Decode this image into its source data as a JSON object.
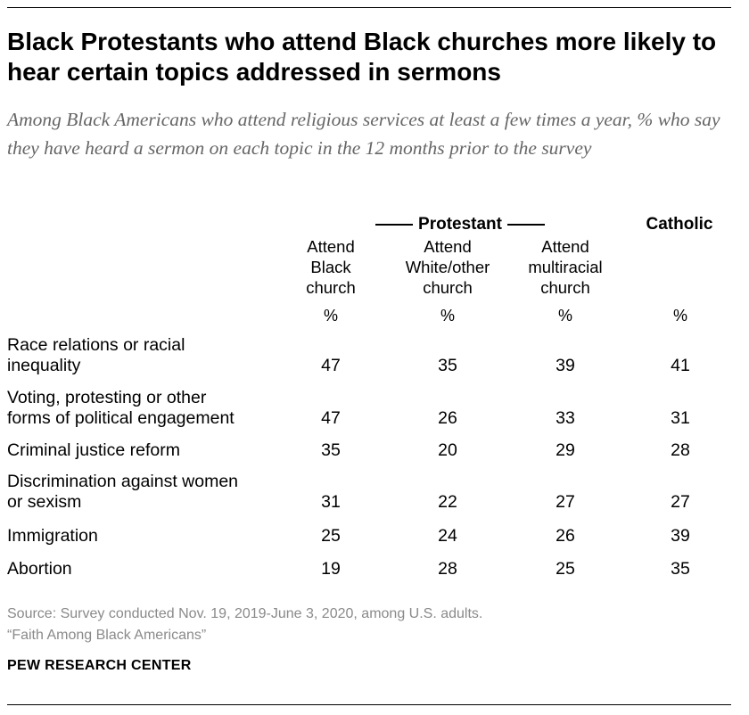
{
  "title": "Black Protestants who attend Black churches more likely to hear certain topics addressed in sermons",
  "subtitle": "Among Black Americans who attend religious services at least a few times a year, % who say they have heard a sermon on each topic in the 12 months prior to the survey",
  "source": {
    "line1": "Source: Survey conducted Nov. 19, 2019-June 3, 2020, among U.S. adults.",
    "line2": "“Faith Among Black Americans”"
  },
  "brand": "PEW RESEARCH CENTER",
  "colors": {
    "subtitle": "#666666",
    "source": "#8a8a8a",
    "text": "#000000"
  },
  "chart_data": {
    "type": "table",
    "title": "Black Protestants who attend Black churches more likely to hear certain topics addressed in sermons",
    "unit": "%",
    "group_header": "Protestant",
    "catholic_header": "Catholic",
    "columns": [
      {
        "lines": [
          "Attend",
          "Black",
          "church"
        ],
        "unit": "%"
      },
      {
        "lines": [
          "Attend",
          "White/other",
          "church"
        ],
        "unit": "%"
      },
      {
        "lines": [
          "Attend",
          "multiracial",
          "church"
        ],
        "unit": "%"
      },
      {
        "lines": [],
        "unit": "%"
      }
    ],
    "rows": [
      {
        "lines": [
          "Race relations or racial",
          "inequality"
        ],
        "values": [
          47,
          35,
          39,
          41
        ]
      },
      {
        "lines": [
          "Voting, protesting or other",
          "forms of political engagement"
        ],
        "values": [
          47,
          26,
          33,
          31
        ]
      },
      {
        "lines": [
          "Criminal justice reform"
        ],
        "values": [
          35,
          20,
          29,
          28
        ]
      },
      {
        "lines": [
          "Discrimination against women",
          "or sexism"
        ],
        "values": [
          31,
          22,
          27,
          27
        ]
      },
      {
        "lines": [
          "Immigration"
        ],
        "values": [
          25,
          24,
          26,
          39
        ]
      },
      {
        "lines": [
          "Abortion"
        ],
        "values": [
          19,
          28,
          25,
          35
        ]
      }
    ]
  }
}
